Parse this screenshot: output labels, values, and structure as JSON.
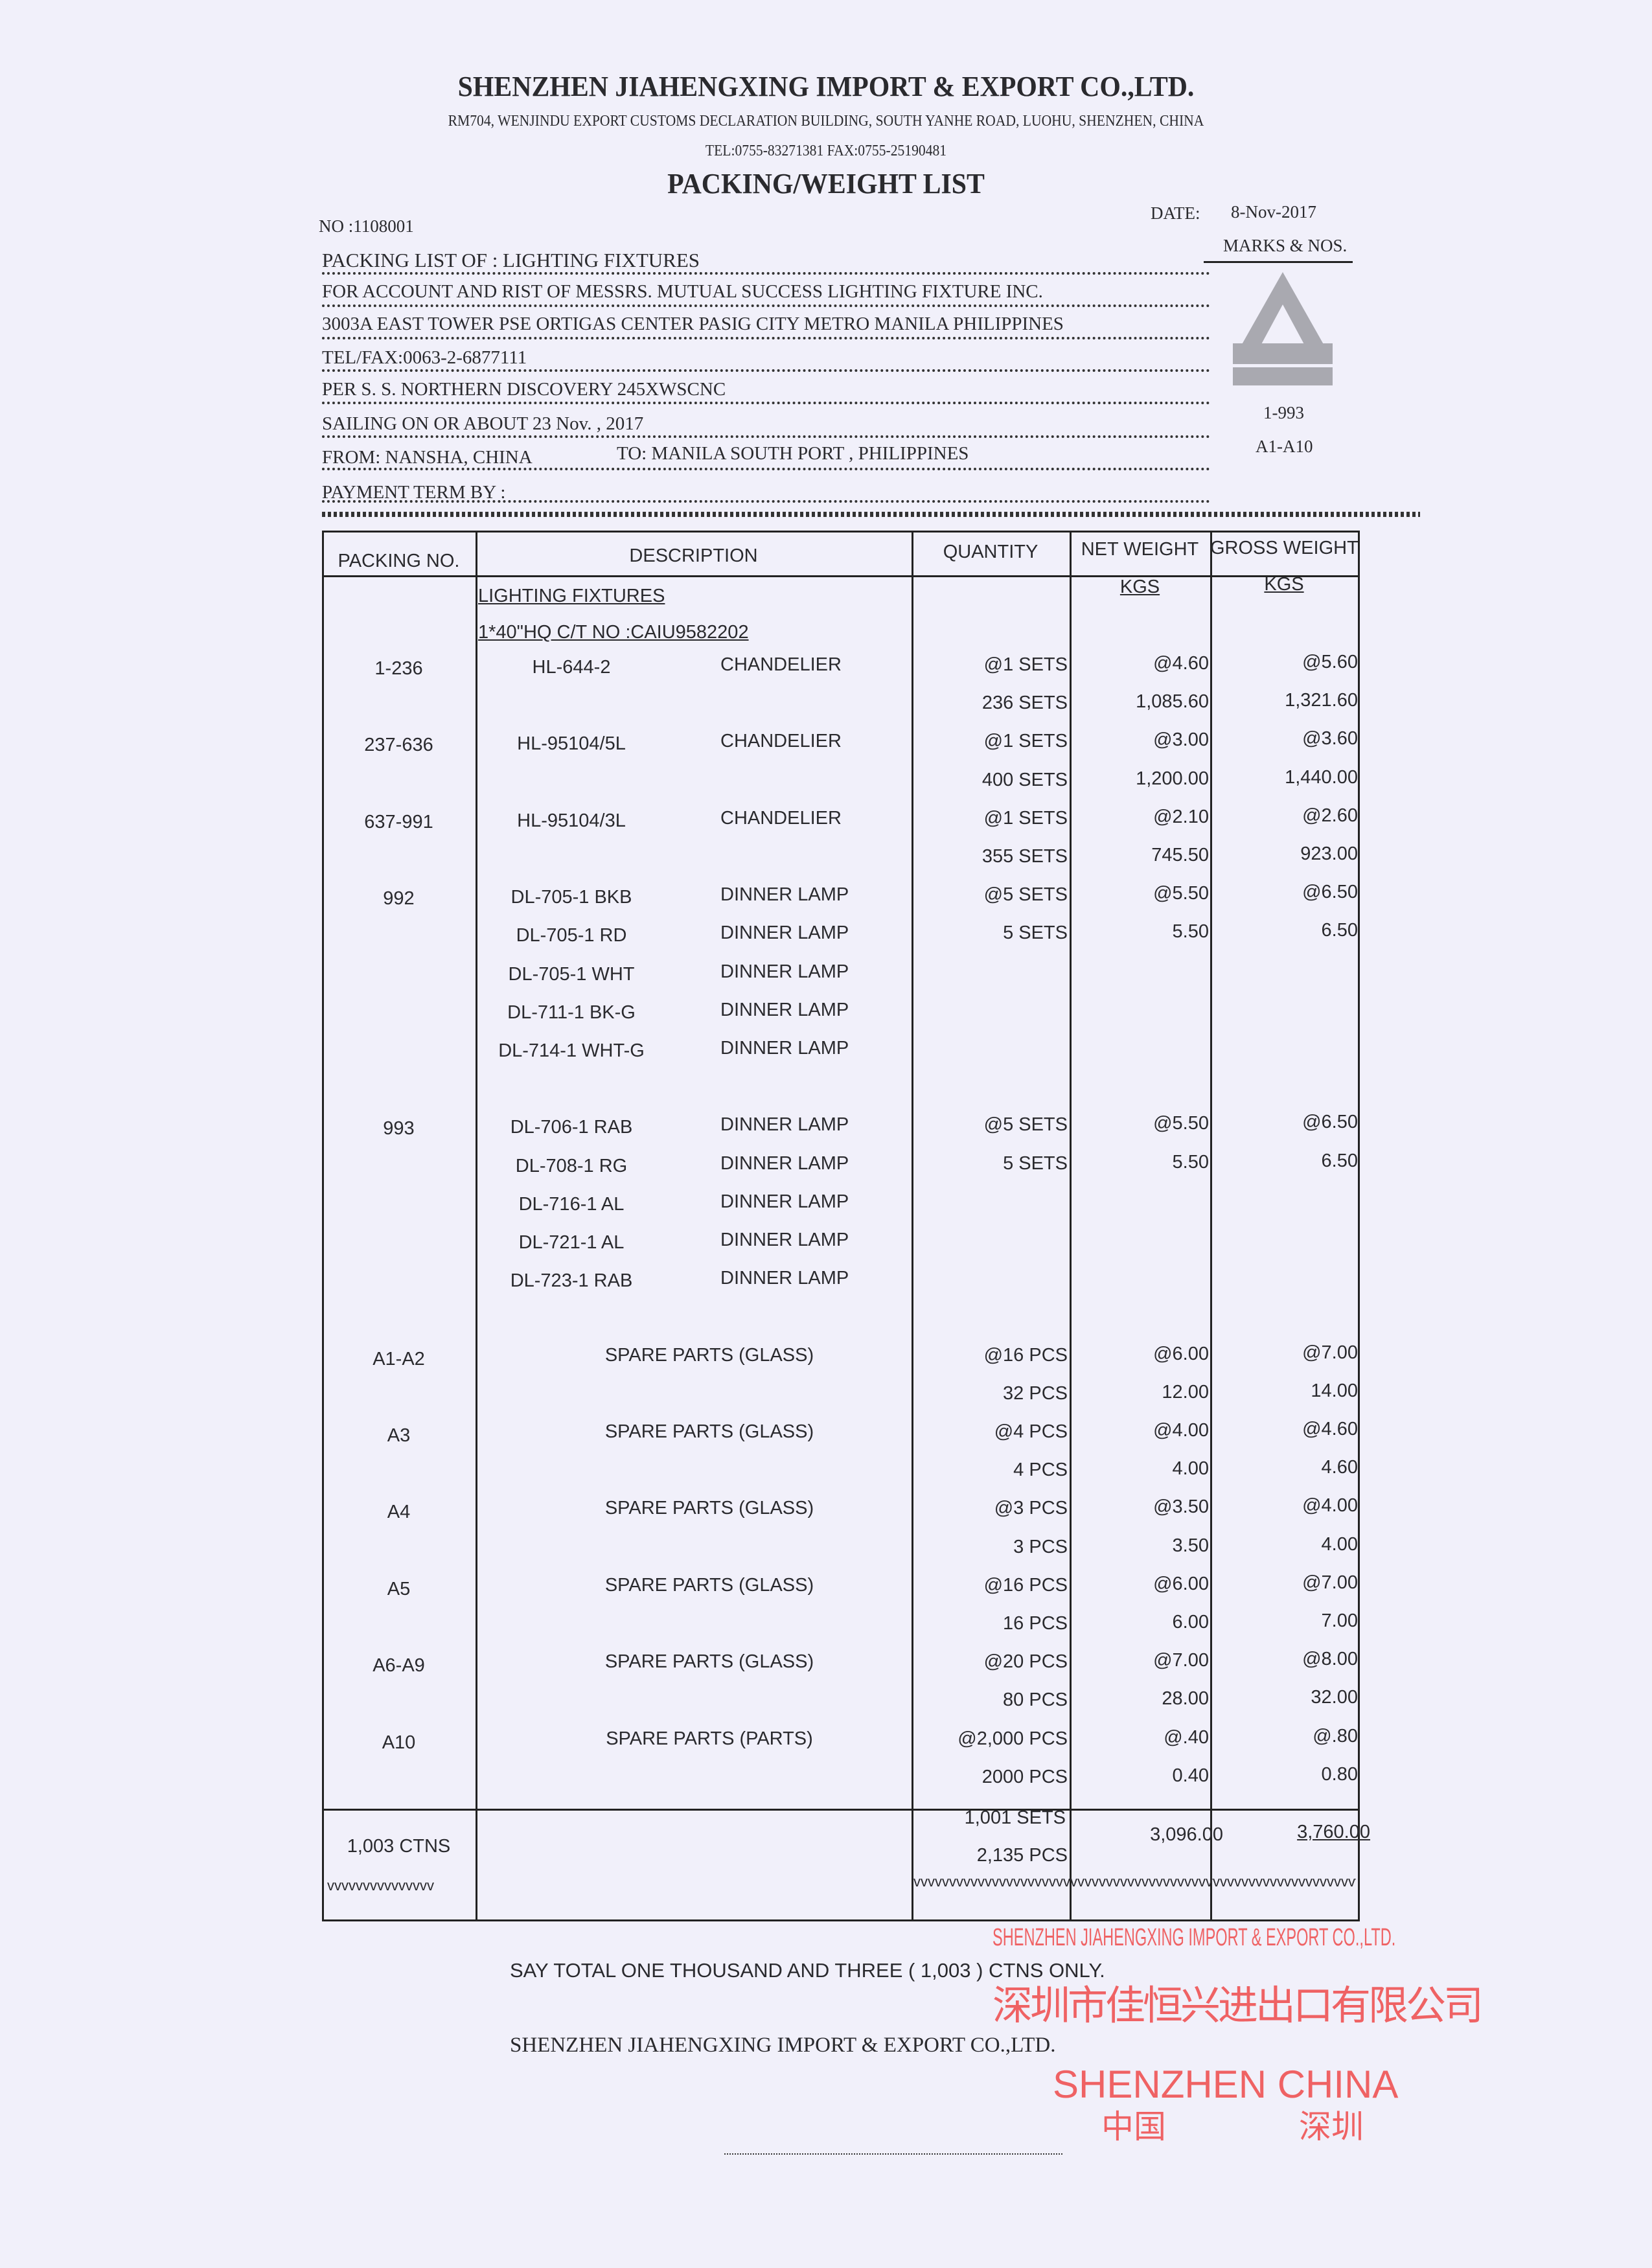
{
  "company": {
    "name": "SHENZHEN JIAHENGXING IMPORT & EXPORT CO.,LTD.",
    "address": "RM704, WENJINDU EXPORT CUSTOMS DECLARATION BUILDING, SOUTH YANHE ROAD, LUOHU, SHENZHEN, CHINA",
    "contact": "TEL:0755-83271381  FAX:0755-25190481"
  },
  "doc_title": "PACKING/WEIGHT LIST",
  "no": "NO :1108001",
  "date_label": "DATE:",
  "date": "8-Nov-2017",
  "marks": {
    "label": "MARKS & NOS.",
    "logo": "A",
    "range1": "1-993",
    "range2": "A1-A10"
  },
  "header_lines": [
    "PACKING LIST  OF : LIGHTING FIXTURES",
    "FOR ACCOUNT AND RIST OF MESSRS. MUTUAL SUCCESS LIGHTING FIXTURE INC.",
    "3003A EAST TOWER PSE ORTIGAS CENTER PASIG CITY METRO MANILA PHILIPPINES",
    "TEL/FAX:0063-2-6877111",
    "PER S. S. NORTHERN DISCOVERY 245XWSCNC",
    "SAILING ON OR ABOUT  23  Nov.  ,  2017",
    "FROM:  NANSHA,  CHINA",
    "PAYMENT TERM BY :"
  ],
  "to_line": "TO:  MANILA SOUTH PORT , PHILIPPINES",
  "table": {
    "columns": [
      "PACKING NO.",
      "DESCRIPTION",
      "QUANTITY",
      "NET WEIGHT",
      "GROSS WEIGHT"
    ],
    "unit": "KGS",
    "product": "LIGHTING FIXTURES",
    "container": "1*40\"HQ  C/T NO :CAIU9582202",
    "lines": [
      {
        "pkg": "1-236",
        "model": "HL-644-2",
        "desc": "CHANDELIER",
        "qty": "@1 SETS",
        "net": "@4.60",
        "gross": "@5.60"
      },
      {
        "pkg": "",
        "model": "",
        "desc": "",
        "qty": "236  SETS",
        "net": "1,085.60",
        "gross": "1,321.60"
      },
      {
        "pkg": "237-636",
        "model": "HL-95104/5L",
        "desc": "CHANDELIER",
        "qty": "@1 SETS",
        "net": "@3.00",
        "gross": "@3.60"
      },
      {
        "pkg": "",
        "model": "",
        "desc": "",
        "qty": "400  SETS",
        "net": "1,200.00",
        "gross": "1,440.00"
      },
      {
        "pkg": "637-991",
        "model": "HL-95104/3L",
        "desc": "CHANDELIER",
        "qty": "@1 SETS",
        "net": "@2.10",
        "gross": "@2.60"
      },
      {
        "pkg": "",
        "model": "",
        "desc": "",
        "qty": "355  SETS",
        "net": "745.50",
        "gross": "923.00"
      },
      {
        "pkg": "992",
        "model": "DL-705-1 BKB",
        "desc": "DINNER LAMP",
        "qty": "@5 SETS",
        "net": "@5.50",
        "gross": "@6.50"
      },
      {
        "pkg": "",
        "model": "DL-705-1 RD",
        "desc": "DINNER LAMP",
        "qty": "5  SETS",
        "net": "5.50",
        "gross": "6.50"
      },
      {
        "pkg": "",
        "model": "DL-705-1 WHT",
        "desc": "DINNER LAMP",
        "qty": "",
        "net": "",
        "gross": ""
      },
      {
        "pkg": "",
        "model": "DL-711-1 BK-G",
        "desc": "DINNER LAMP",
        "qty": "",
        "net": "",
        "gross": ""
      },
      {
        "pkg": "",
        "model": "DL-714-1 WHT-G",
        "desc": "DINNER LAMP",
        "qty": "",
        "net": "",
        "gross": ""
      },
      {
        "pkg": "",
        "model": "",
        "desc": "",
        "qty": "",
        "net": "",
        "gross": ""
      },
      {
        "pkg": "993",
        "model": "DL-706-1 RAB",
        "desc": "DINNER LAMP",
        "qty": "@5 SETS",
        "net": "@5.50",
        "gross": "@6.50"
      },
      {
        "pkg": "",
        "model": "DL-708-1 RG",
        "desc": "DINNER LAMP",
        "qty": "5  SETS",
        "net": "5.50",
        "gross": "6.50"
      },
      {
        "pkg": "",
        "model": "DL-716-1 AL",
        "desc": "DINNER LAMP",
        "qty": "",
        "net": "",
        "gross": ""
      },
      {
        "pkg": "",
        "model": "DL-721-1 AL",
        "desc": "DINNER LAMP",
        "qty": "",
        "net": "",
        "gross": ""
      },
      {
        "pkg": "",
        "model": "DL-723-1 RAB",
        "desc": "DINNER LAMP",
        "qty": "",
        "net": "",
        "gross": ""
      },
      {
        "pkg": "",
        "model": "",
        "desc": "",
        "qty": "",
        "net": "",
        "gross": ""
      },
      {
        "pkg": "A1-A2",
        "part": "SPARE PARTS (GLASS)",
        "qty": "@16  PCS",
        "net": "@6.00",
        "gross": "@7.00"
      },
      {
        "pkg": "",
        "part": "",
        "qty": "32  PCS",
        "net": "12.00",
        "gross": "14.00"
      },
      {
        "pkg": "A3",
        "part": "SPARE PARTS (GLASS)",
        "qty": "@4  PCS",
        "net": "@4.00",
        "gross": "@4.60"
      },
      {
        "pkg": "",
        "part": "",
        "qty": "4  PCS",
        "net": "4.00",
        "gross": "4.60"
      },
      {
        "pkg": "A4",
        "part": "SPARE PARTS (GLASS)",
        "qty": "@3  PCS",
        "net": "@3.50",
        "gross": "@4.00"
      },
      {
        "pkg": "",
        "part": "",
        "qty": "3  PCS",
        "net": "3.50",
        "gross": "4.00"
      },
      {
        "pkg": "A5",
        "part": "SPARE PARTS (GLASS)",
        "qty": "@16  PCS",
        "net": "@6.00",
        "gross": "@7.00"
      },
      {
        "pkg": "",
        "part": "",
        "qty": "16  PCS",
        "net": "6.00",
        "gross": "7.00"
      },
      {
        "pkg": "A6-A9",
        "part": "SPARE PARTS (GLASS)",
        "qty": "@20  PCS",
        "net": "@7.00",
        "gross": "@8.00"
      },
      {
        "pkg": "",
        "part": "",
        "qty": "80  PCS",
        "net": "28.00",
        "gross": "32.00"
      },
      {
        "pkg": "A10",
        "part": "SPARE PARTS (PARTS)",
        "qty": "@2,000  PCS",
        "net": "@.40",
        "gross": "@.80"
      },
      {
        "pkg": "",
        "part": "",
        "qty": "2000  PCS",
        "net": "0.40",
        "gross": "0.80"
      }
    ],
    "totals": {
      "packages": "1,003 CTNS",
      "qty_sets": "1,001  SETS",
      "qty_pcs": "2,135  PCS",
      "net": "3,096.00",
      "gross": "3,760.00",
      "end_mark_short": "vvvvvvvvvvvvvvv",
      "end_mark_long": "vvvvvvvvvvvvvvvvvvvvvvvvvvvvvvvvvvvvvvvvvvvvvvvvvvvvvvvvvvvvvvvvv"
    }
  },
  "say_total": "SAY  TOTAL ONE THOUSAND AND THREE  (   1,003 ) CTNS ONLY.",
  "closing": "SHENZHEN JIAHENGXING IMPORT & EXPORT CO.,LTD.",
  "stamp": {
    "en": "SHENZHEN JIAHENGXING IMPORT & EXPORT CO.,LTD.",
    "cn": "深圳市佳恒兴进出口有限公司",
    "city_en": "SHENZHEN   CHINA",
    "city_cn_left": "中国",
    "city_cn_right": "深圳",
    "color": "#ef4a4a"
  }
}
